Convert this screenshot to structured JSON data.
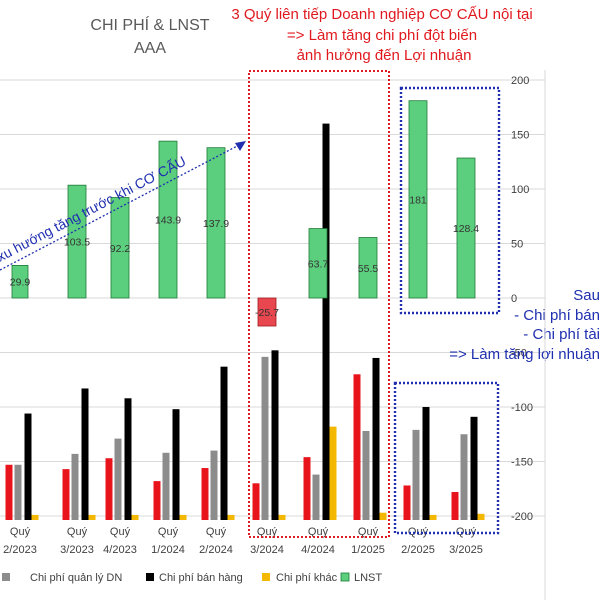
{
  "chart_data": {
    "type": "bar",
    "title": "CHI PHÍ & LNST",
    "subtitle": "AAA",
    "categories": [
      [
        "Quý",
        "2/2023"
      ],
      [
        "Quý",
        "3/2023"
      ],
      [
        "Quý",
        "4/2023"
      ],
      [
        "Quý",
        "1/2024"
      ],
      [
        "Quý",
        "2/2024"
      ],
      [
        "Quý",
        "3/2024"
      ],
      [
        "Quý",
        "4/2024"
      ],
      [
        "Quý",
        "1/2025"
      ],
      [
        "Quý",
        "2/2025"
      ],
      [
        "Quý",
        "3/2025"
      ]
    ],
    "yaxis_right": {
      "ylim": [
        -200,
        200
      ],
      "ticks": [
        -200,
        -150,
        -100,
        -50,
        0,
        50,
        100,
        150,
        200
      ]
    },
    "series": [
      {
        "name": "",
        "color": "#e8141c",
        "values": [
          -153,
          -157,
          -147,
          -168,
          -156,
          -170,
          -146,
          -70,
          -172,
          -178
        ]
      },
      {
        "name": "Chi phí quản lý DN",
        "color": "#8c8c8c",
        "values": [
          -153,
          -143,
          -129,
          -142,
          -140,
          -54,
          -162,
          -122,
          -121,
          -125
        ]
      },
      {
        "name": "Chi phí bán hàng",
        "color": "#000000",
        "values": [
          -106,
          -83,
          -92,
          -102,
          -63,
          -48,
          160,
          -55,
          -100,
          -109
        ]
      },
      {
        "name": "Chi phí khác",
        "color": "#f5b800",
        "values": [
          -199,
          -199,
          -199,
          -199,
          -199,
          -199,
          -118,
          -197,
          -199,
          -198
        ]
      },
      {
        "name": "LNST",
        "color": "#2fb04e",
        "values": [
          29.9,
          103.5,
          92.2,
          143.9,
          137.9,
          -25.7,
          63.7,
          55.5,
          181,
          128.4
        ],
        "labels": [
          "29.9",
          "103.5",
          "92.2",
          "143.9",
          "137.9",
          "-25.7",
          "63.7",
          "55.5",
          "181",
          "128.4"
        ]
      }
    ],
    "legend_position": "bottom"
  },
  "annotations": {
    "red_box_text": [
      "3 Quý liên tiếp Doanh nghiệp CƠ CẤU nội tại",
      "=> Làm tăng chi phí đột biến",
      "ảnh hưởng đến Lợi nhuận"
    ],
    "trend_text": "xu hướng tăng trước khi CƠ CẤU",
    "right_text": [
      "Sau",
      "- Chi phí bán",
      "- Chi phí tài",
      "=> Làm tăng lợi nhuận"
    ]
  },
  "colors": {
    "red_annotation": "#e0191f",
    "blue_annotation": "#1f2fb0",
    "lnst_negative": "#e8474f"
  }
}
